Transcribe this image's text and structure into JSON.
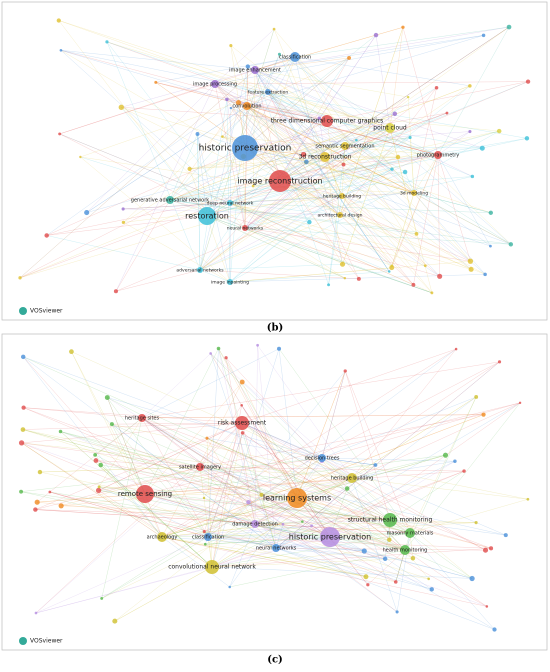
{
  "panels": [
    {
      "caption": "(b)",
      "logo": "VOSviewer",
      "nodes": [
        {
          "label": "historic preservation"
        },
        {
          "label": "image reconstruction"
        },
        {
          "label": "restoration"
        },
        {
          "label": "three dimensional computer graphics"
        },
        {
          "label": "3d reconstruction"
        },
        {
          "label": "point cloud"
        },
        {
          "label": "photogrammetry"
        },
        {
          "label": "classification"
        },
        {
          "label": "image processing"
        },
        {
          "label": "image enhancement"
        },
        {
          "label": "feature extraction"
        },
        {
          "label": "convolution"
        },
        {
          "label": "generative adversarial network"
        },
        {
          "label": "deep neural network"
        },
        {
          "label": "neural networks"
        },
        {
          "label": "adversarial networks"
        },
        {
          "label": "image inpainting"
        },
        {
          "label": "3d modeling"
        },
        {
          "label": "heritage building"
        },
        {
          "label": "semantic segmentation"
        },
        {
          "label": "architectural design"
        }
      ]
    },
    {
      "caption": "(c)",
      "logo": "VOSviewer",
      "nodes": [
        {
          "label": "learning systems"
        },
        {
          "label": "historic preservation"
        },
        {
          "label": "remote sensing"
        },
        {
          "label": "risk assessment"
        },
        {
          "label": "structural health monitoring"
        },
        {
          "label": "masonry materials"
        },
        {
          "label": "health monitoring"
        },
        {
          "label": "convolutional neural network"
        },
        {
          "label": "heritage building"
        },
        {
          "label": "archaeology"
        },
        {
          "label": "heritage sites"
        },
        {
          "label": "decision trees"
        },
        {
          "label": "satellite imagery"
        },
        {
          "label": "neural networks"
        },
        {
          "label": "damage detection"
        },
        {
          "label": "classification"
        }
      ]
    }
  ]
}
